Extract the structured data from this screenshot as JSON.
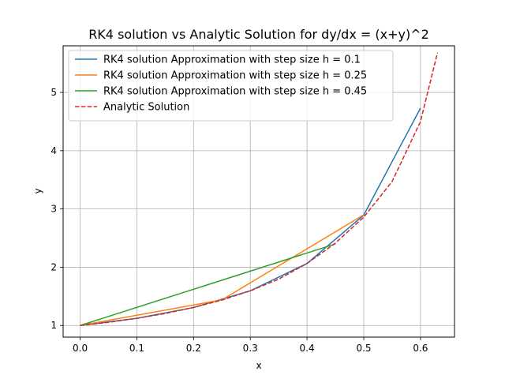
{
  "chart_data": {
    "type": "line",
    "title": "RK4 solution vs Analytic Solution for dy/dx = (x+y)^2",
    "xlabel": "x",
    "ylabel": "y",
    "xlim": [
      -0.03,
      0.66
    ],
    "ylim": [
      0.8,
      5.8
    ],
    "xticks": [
      "0.0",
      "0.1",
      "0.2",
      "0.3",
      "0.4",
      "0.5",
      "0.6"
    ],
    "yticks": [
      "1",
      "2",
      "3",
      "4",
      "5"
    ],
    "grid": true,
    "legend_position": "top-left",
    "series": [
      {
        "name": "RK4 solution  Approximation with step size h = 0.1",
        "color": "#1f77b4",
        "style": "solid",
        "x": [
          0.0,
          0.1,
          0.2,
          0.3,
          0.4,
          0.5,
          0.6
        ],
        "y": [
          1.0,
          1.123,
          1.309,
          1.595,
          2.064,
          2.895,
          4.73
        ]
      },
      {
        "name": "RK4 solution  Approximation with step size h = 0.25",
        "color": "#ff7f0e",
        "style": "solid",
        "x": [
          0.0,
          0.25,
          0.5
        ],
        "y": [
          1.0,
          1.44,
          2.9
        ]
      },
      {
        "name": "RK4 solution  Approximation with step size h = 0.45",
        "color": "#2ca02c",
        "style": "solid",
        "x": [
          0.0,
          0.45
        ],
        "y": [
          1.0,
          2.4
        ]
      },
      {
        "name": "Analytic Solution",
        "color": "#d62728",
        "style": "dashed",
        "x": [
          0.0,
          0.05,
          0.1,
          0.15,
          0.2,
          0.25,
          0.3,
          0.35,
          0.4,
          0.45,
          0.5,
          0.55,
          0.6,
          0.63
        ],
        "y": [
          1.0,
          1.055,
          1.123,
          1.206,
          1.31,
          1.437,
          1.595,
          1.796,
          2.064,
          2.414,
          2.86,
          3.47,
          4.5,
          5.68
        ]
      }
    ]
  }
}
